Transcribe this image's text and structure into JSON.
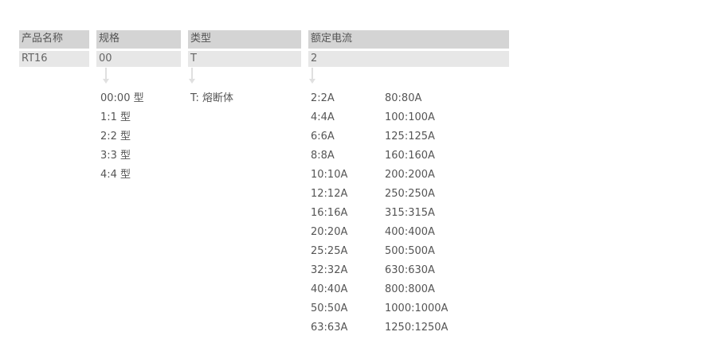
{
  "columns": [
    {
      "header": "产品名称",
      "value": "RT16"
    },
    {
      "header": "规格",
      "value": "00"
    },
    {
      "header": "类型",
      "value": "T"
    },
    {
      "header": "额定电流",
      "value": "2"
    }
  ],
  "spec_options": [
    "00:00 型",
    "1:1 型",
    "2:2 型",
    "3:3 型",
    "4:4 型"
  ],
  "type_options": [
    "T:  熔断体"
  ],
  "current_options_left": [
    "2:2A",
    "4:4A",
    "6:6A",
    "8:8A",
    "10:10A",
    "12:12A",
    "16:16A",
    "20:20A",
    "25:25A",
    "32:32A",
    "40:40A",
    "50:50A",
    "63:63A"
  ],
  "current_options_right": [
    "80:80A",
    "100:100A",
    "125:125A",
    "160:160A",
    "200:200A",
    "250:250A",
    "315:315A",
    "400:400A",
    "500:500A",
    "630:630A",
    "800:800A",
    "1000:1000A",
    "1250:1250A"
  ]
}
